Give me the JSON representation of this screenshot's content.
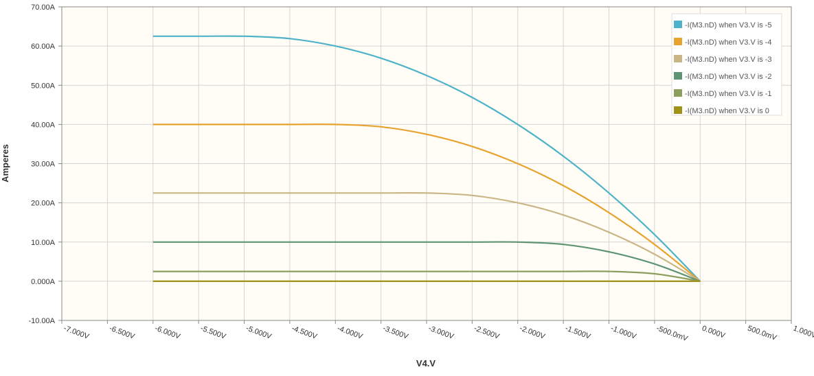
{
  "colors": {
    "plot_background": "#fffdf5",
    "grid": "#d4d4d4",
    "axis": "#888888"
  },
  "chart_data": {
    "type": "line",
    "xlabel": "V4.V",
    "ylabel": "Amperes",
    "xlim": [
      -7.0,
      1.0
    ],
    "ylim": [
      -10.0,
      70.0
    ],
    "x_ticks": [
      -7.0,
      -6.5,
      -6.0,
      -5.5,
      -5.0,
      -4.5,
      -4.0,
      -3.5,
      -3.0,
      -2.5,
      -2.0,
      -1.5,
      -1.0,
      -0.5,
      0.0,
      0.5,
      1.0
    ],
    "x_tick_labels": [
      "-7.000V",
      "-6.500V",
      "-6.000V",
      "-5.500V",
      "-5.000V",
      "-4.500V",
      "-4.000V",
      "-3.500V",
      "-3.000V",
      "-2.500V",
      "-2.000V",
      "-1.500V",
      "-1.000V",
      "-500.0mV",
      "0.000V",
      "500.0mV",
      "1.000V"
    ],
    "y_ticks": [
      -10,
      0,
      10,
      20,
      30,
      40,
      50,
      60,
      70
    ],
    "y_tick_labels": [
      "-10.00A",
      "0.000A",
      "10.00A",
      "20.00A",
      "30.00A",
      "40.00A",
      "50.00A",
      "60.00A",
      "70.00A"
    ],
    "grid": true,
    "legend_position": "top-right",
    "x": [
      -6.0,
      -5.5,
      -5.0,
      -4.5,
      -4.0,
      -3.5,
      -3.0,
      -2.5,
      -2.0,
      -1.5,
      -1.0,
      -0.5,
      0.0
    ],
    "series": [
      {
        "name": "-I(M3.nD) when V3.V is -5",
        "color": "#4eb3c8",
        "values": [
          62.5,
          62.5,
          62.5,
          61.9,
          60.0,
          56.9,
          52.5,
          46.9,
          40.0,
          31.9,
          22.5,
          11.9,
          0.0
        ]
      },
      {
        "name": "-I(M3.nD) when V3.V is -4",
        "color": "#e8a22e",
        "values": [
          40.0,
          40.0,
          40.0,
          40.0,
          40.0,
          39.4,
          37.5,
          34.4,
          30.0,
          24.4,
          17.5,
          9.4,
          0.0
        ]
      },
      {
        "name": "-I(M3.nD) when V3.V is -3",
        "color": "#c9b585",
        "values": [
          22.5,
          22.5,
          22.5,
          22.5,
          22.5,
          22.5,
          22.5,
          21.9,
          20.0,
          16.9,
          12.5,
          6.9,
          0.0
        ]
      },
      {
        "name": "-I(M3.nD) when V3.V is -2",
        "color": "#5e9473",
        "values": [
          10.0,
          10.0,
          10.0,
          10.0,
          10.0,
          10.0,
          10.0,
          10.0,
          10.0,
          9.4,
          7.5,
          4.4,
          0.0
        ]
      },
      {
        "name": "-I(M3.nD) when V3.V is -1",
        "color": "#8c9e5e",
        "values": [
          2.5,
          2.5,
          2.5,
          2.5,
          2.5,
          2.5,
          2.5,
          2.5,
          2.5,
          2.5,
          2.5,
          1.9,
          0.0
        ]
      },
      {
        "name": "-I(M3.nD) when V3.V is 0",
        "color": "#a19117",
        "values": [
          0.0,
          0.0,
          0.0,
          0.0,
          0.0,
          0.0,
          0.0,
          0.0,
          0.0,
          0.0,
          0.0,
          0.0,
          0.0
        ]
      }
    ]
  }
}
